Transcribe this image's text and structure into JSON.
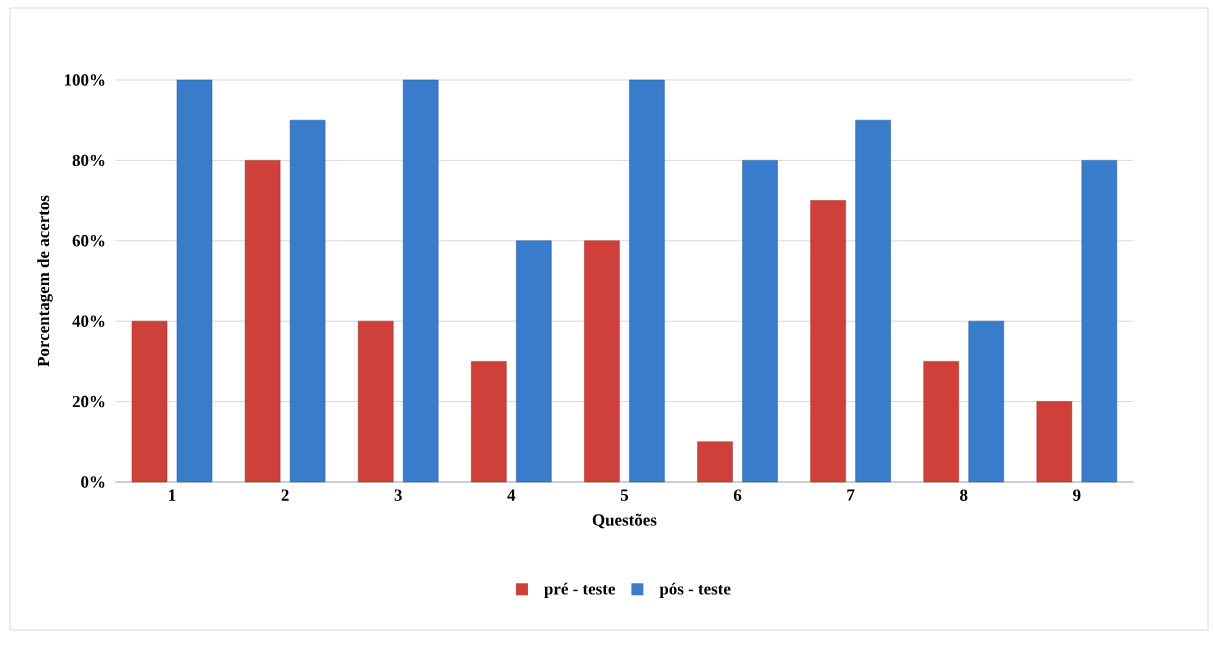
{
  "chart_data": {
    "type": "bar",
    "xlabel": "Questões",
    "ylabel": "Porcentagem de acertos",
    "categories": [
      "1",
      "2",
      "3",
      "4",
      "5",
      "6",
      "7",
      "8",
      "9"
    ],
    "series": [
      {
        "name": "pré - teste",
        "color": "#d0403a",
        "values": [
          40,
          80,
          40,
          30,
          60,
          10,
          70,
          30,
          20
        ]
      },
      {
        "name": "pós - teste",
        "color": "#3a7ccc",
        "values": [
          100,
          90,
          100,
          60,
          100,
          80,
          90,
          40,
          80
        ]
      }
    ],
    "ylim": [
      0,
      100
    ],
    "yticks": [
      {
        "value": 0,
        "label": "0%"
      },
      {
        "value": 20,
        "label": "20%"
      },
      {
        "value": 40,
        "label": "40%"
      },
      {
        "value": 60,
        "label": "60%"
      },
      {
        "value": 80,
        "label": "80%"
      },
      {
        "value": 100,
        "label": "100%"
      }
    ],
    "grid": "y",
    "legend": "bottom"
  }
}
